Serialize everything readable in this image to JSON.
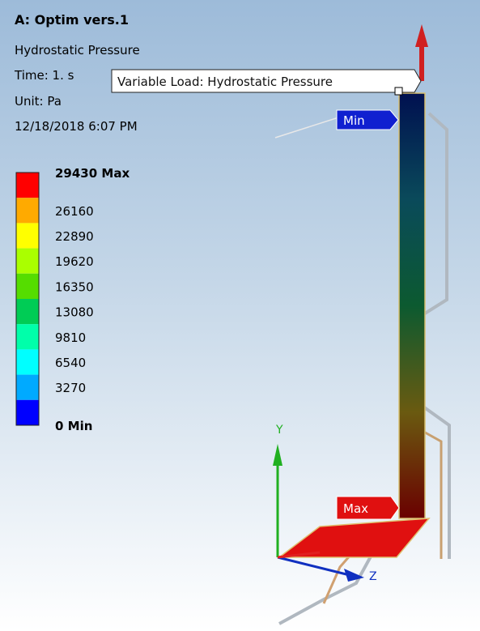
{
  "header": {
    "title": "A: Optim vers.1",
    "lines": [
      "Hydrostatic Pressure",
      "Time: 1. s",
      "Unit: Pa",
      "12/18/2018 6:07 PM"
    ]
  },
  "legend": {
    "entries": [
      {
        "label": "29430 Max",
        "color": "#ff0000"
      },
      {
        "label": "26160",
        "color": "#ffaa00"
      },
      {
        "label": "22890",
        "color": "#ffff00"
      },
      {
        "label": "19620",
        "color": "#aaff00"
      },
      {
        "label": "16350",
        "color": "#55dd00"
      },
      {
        "label": "13080",
        "color": "#00cc55"
      },
      {
        "label": "9810",
        "color": "#00ffaa"
      },
      {
        "label": "6540",
        "color": "#00ffff"
      },
      {
        "label": "3270",
        "color": "#00aaff"
      },
      {
        "label": "0 Min",
        "color": "#0000ff"
      }
    ]
  },
  "callouts": {
    "load": "Variable Load: Hydrostatic Pressure",
    "min": "Min",
    "max": "Max"
  },
  "axes": {
    "y": "Y",
    "z": "Z"
  }
}
